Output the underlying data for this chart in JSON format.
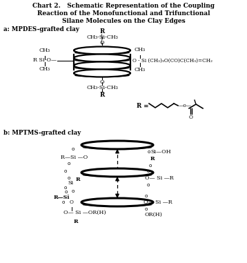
{
  "title1": "Chart 2.   Schematic Representation of the Coupling",
  "title2": "Reaction of the Monofunctional and Trifunctional",
  "title3": "Silane Molecules on the Clay Edges",
  "label_a": "a: MPDES-grafted clay",
  "label_b": "b: MPTMS-grafted clay",
  "bg": "#ffffff",
  "figsize": [
    3.58,
    3.81
  ],
  "dpi": 100
}
